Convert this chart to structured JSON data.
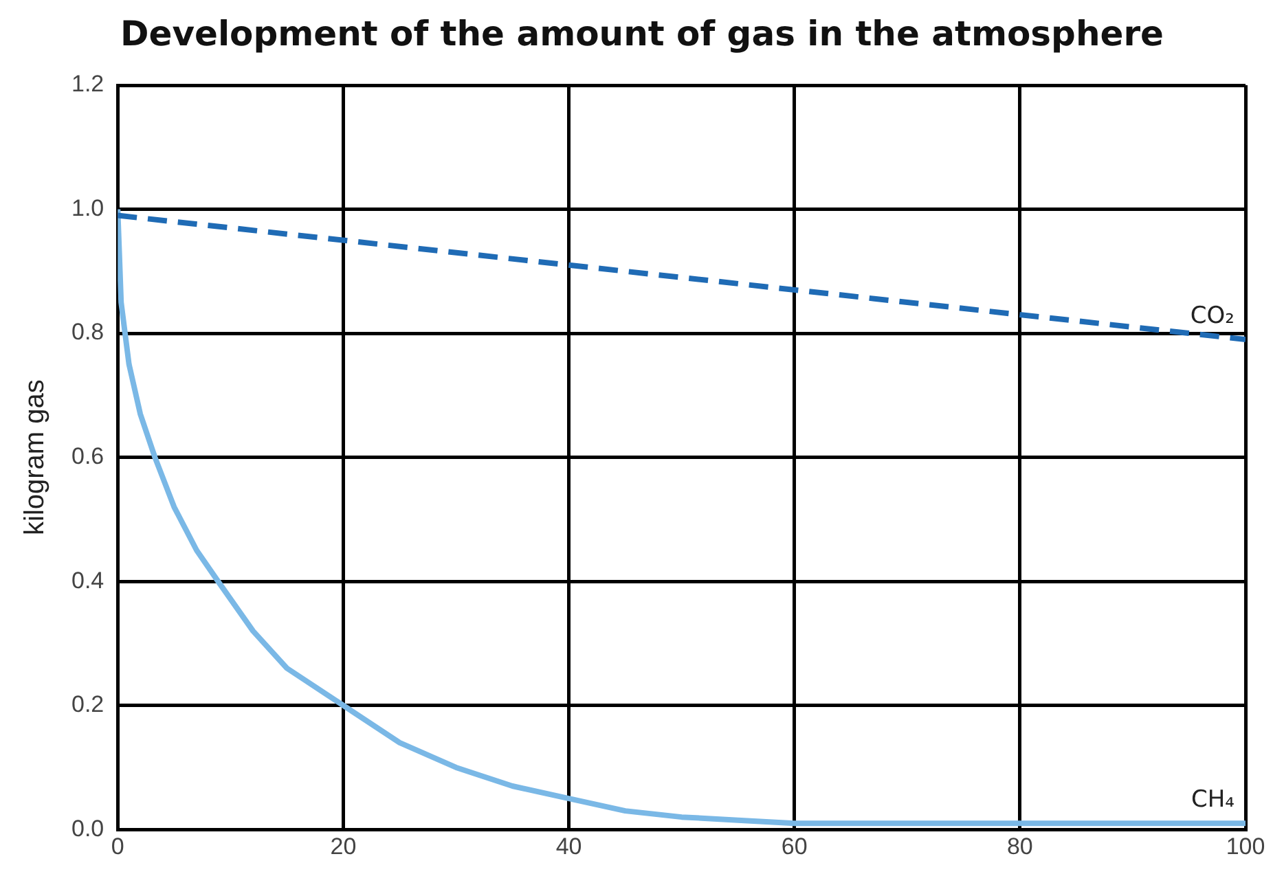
{
  "chart_data": {
    "type": "line",
    "title": "Development of the amount of gas in the atmosphere",
    "ylabel": "kilogram gas",
    "series": [
      {
        "name": "CO₂",
        "color": "#1f6bb5",
        "line_style": "dashed",
        "x": [
          0,
          100
        ],
        "values": [
          0.99,
          0.79
        ]
      },
      {
        "name": "CH₄",
        "color": "#7ab8e6",
        "line_style": "solid",
        "x": [
          0,
          0.3,
          1,
          2,
          3.3,
          5,
          7,
          8.9,
          12,
          15,
          20,
          25,
          30,
          35,
          40,
          45,
          50,
          55,
          60,
          100
        ],
        "values": [
          1.0,
          0.85,
          0.75,
          0.67,
          0.6,
          0.52,
          0.45,
          0.4,
          0.32,
          0.26,
          0.2,
          0.14,
          0.1,
          0.07,
          0.05,
          0.03,
          0.02,
          0.015,
          0.01,
          0.01
        ]
      }
    ],
    "xlim": [
      0,
      100
    ],
    "xticks": [
      0,
      20,
      40,
      60,
      80,
      100
    ],
    "ylim": [
      0,
      1.2
    ],
    "yticks": [
      {
        "value": 0,
        "label": "0.0"
      },
      {
        "value": 0.2,
        "label": "0.2"
      },
      {
        "value": 0.4,
        "label": "0.4"
      },
      {
        "value": 0.6,
        "label": "0.6"
      },
      {
        "value": 0.8,
        "label": "0.8"
      },
      {
        "value": 1.0,
        "label": "1.0"
      },
      {
        "value": 1.2,
        "label": "1.2"
      }
    ],
    "grid": true,
    "legend": false,
    "marker": "none"
  }
}
